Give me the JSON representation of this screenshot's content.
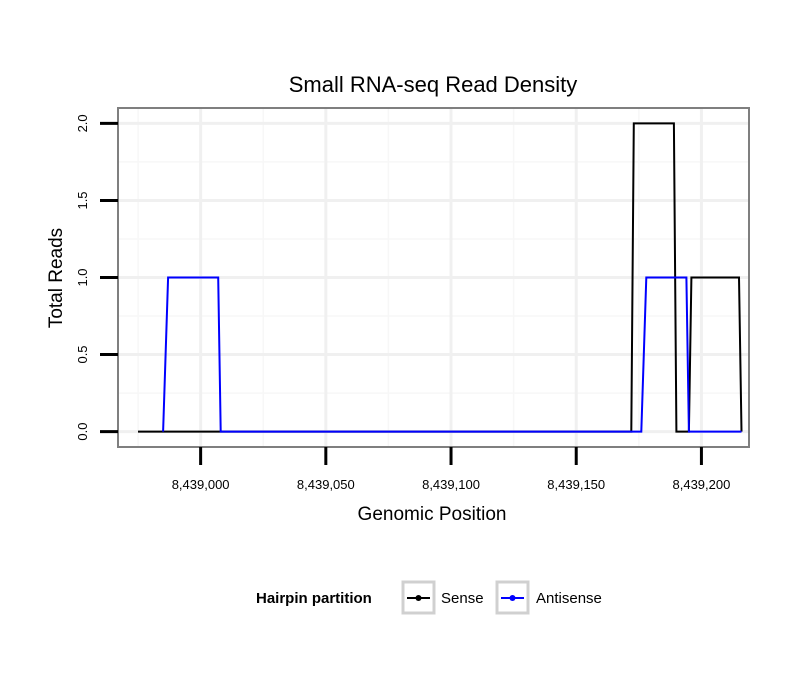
{
  "chart_data": {
    "type": "line",
    "title": "Small RNA-seq Read Density",
    "xlabel": "Genomic Position",
    "ylabel": "Total Reads",
    "xlim": [
      8438967,
      8439219
    ],
    "ylim": [
      -0.1,
      2.1
    ],
    "x_ticks": [
      8439000,
      8439050,
      8439100,
      8439150,
      8439200
    ],
    "x_tick_labels": [
      "8,439,000",
      "8,439,050",
      "8,439,100",
      "8,439,150",
      "8,439,200"
    ],
    "y_ticks": [
      0,
      0.5,
      1,
      1.5,
      2
    ],
    "y_tick_labels": [
      "0.0",
      "0.5",
      "1.0",
      "1.5",
      "2.0"
    ],
    "grid": true,
    "legend": {
      "title": "Hairpin partition",
      "position": "bottom",
      "entries": [
        "Sense",
        "Antisense"
      ]
    },
    "series": [
      {
        "name": "Sense",
        "color": "#000000",
        "points": [
          [
            8438975,
            0
          ],
          [
            8439172,
            0
          ],
          [
            8439173,
            2
          ],
          [
            8439189,
            2
          ],
          [
            8439190,
            0
          ],
          [
            8439195,
            0
          ],
          [
            8439196,
            1
          ],
          [
            8439215,
            1
          ],
          [
            8439216,
            0
          ]
        ]
      },
      {
        "name": "Antisense",
        "color": "#0000ff",
        "points": [
          [
            8438985,
            0
          ],
          [
            8438987,
            1
          ],
          [
            8439007,
            1
          ],
          [
            8439008,
            0
          ],
          [
            8439176,
            0
          ],
          [
            8439178,
            1
          ],
          [
            8439194,
            1
          ],
          [
            8439195,
            0
          ],
          [
            8439216,
            0
          ]
        ]
      }
    ]
  }
}
